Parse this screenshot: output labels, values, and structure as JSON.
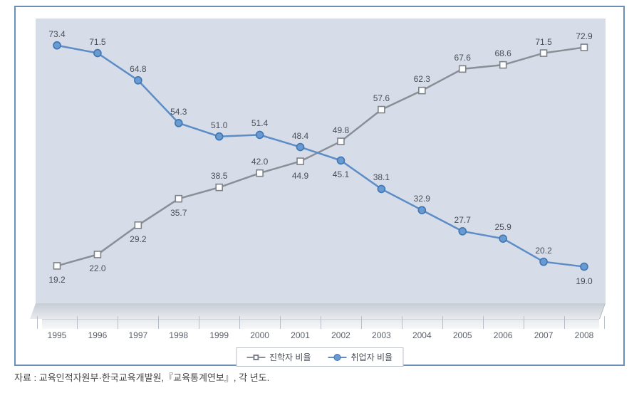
{
  "chart": {
    "type": "line",
    "background_color": "#ffffff",
    "plot_background_color": "#d6dde9",
    "frame_border_color": "#6b8fb8",
    "x_labels": [
      "1995",
      "1996",
      "1997",
      "1998",
      "1999",
      "2000",
      "2001",
      "2002",
      "2003",
      "2004",
      "2005",
      "2006",
      "2007",
      "2008"
    ],
    "x_label_fontsize": 12,
    "x_label_color": "#5a5f68",
    "y_domain": [
      10,
      80
    ],
    "data_label_fontsize": 12,
    "data_label_color": "#4a4f57",
    "series": [
      {
        "key": "enroll",
        "name": "진학자 비율",
        "color": "#8a8f96",
        "marker": "square",
        "marker_fill": "#ffffff",
        "marker_border": "#7d828a",
        "line_width": 2.5,
        "values": [
          19.2,
          22.0,
          29.2,
          35.7,
          38.5,
          42.0,
          44.9,
          49.8,
          57.6,
          62.3,
          67.6,
          68.6,
          71.5,
          72.9
        ],
        "label_offset": [
          [
            0,
            20
          ],
          [
            0,
            20
          ],
          [
            0,
            20
          ],
          [
            0,
            20
          ],
          [
            0,
            -16
          ],
          [
            0,
            -16
          ],
          [
            0,
            20
          ],
          [
            0,
            -16
          ],
          [
            0,
            -16
          ],
          [
            0,
            -16
          ],
          [
            0,
            -16
          ],
          [
            0,
            -16
          ],
          [
            0,
            -16
          ],
          [
            0,
            -16
          ]
        ]
      },
      {
        "key": "employ",
        "name": "취업자 비율",
        "color": "#5d8cc6",
        "marker": "circle",
        "marker_fill": "#6a9ad2",
        "marker_border": "#4076b2",
        "line_width": 2.5,
        "values": [
          73.4,
          71.5,
          64.8,
          54.3,
          51.0,
          51.4,
          48.4,
          45.1,
          38.1,
          32.9,
          27.7,
          25.9,
          20.2,
          19.0
        ],
        "label_offset": [
          [
            0,
            -16
          ],
          [
            0,
            -16
          ],
          [
            0,
            -16
          ],
          [
            0,
            -16
          ],
          [
            0,
            -16
          ],
          [
            0,
            -16
          ],
          [
            0,
            -16
          ],
          [
            0,
            20
          ],
          [
            0,
            -16
          ],
          [
            0,
            -16
          ],
          [
            0,
            -16
          ],
          [
            0,
            -16
          ],
          [
            0,
            -16
          ],
          [
            0,
            20
          ]
        ]
      }
    ],
    "legend": {
      "border_color": "#b9bec7",
      "fontsize": 12
    }
  },
  "source_text": "자료 : 교육인적자원부·한국교육개발원,『교육통계연보』, 각 년도.",
  "source_fontsize": 13,
  "source_color": "#454545"
}
